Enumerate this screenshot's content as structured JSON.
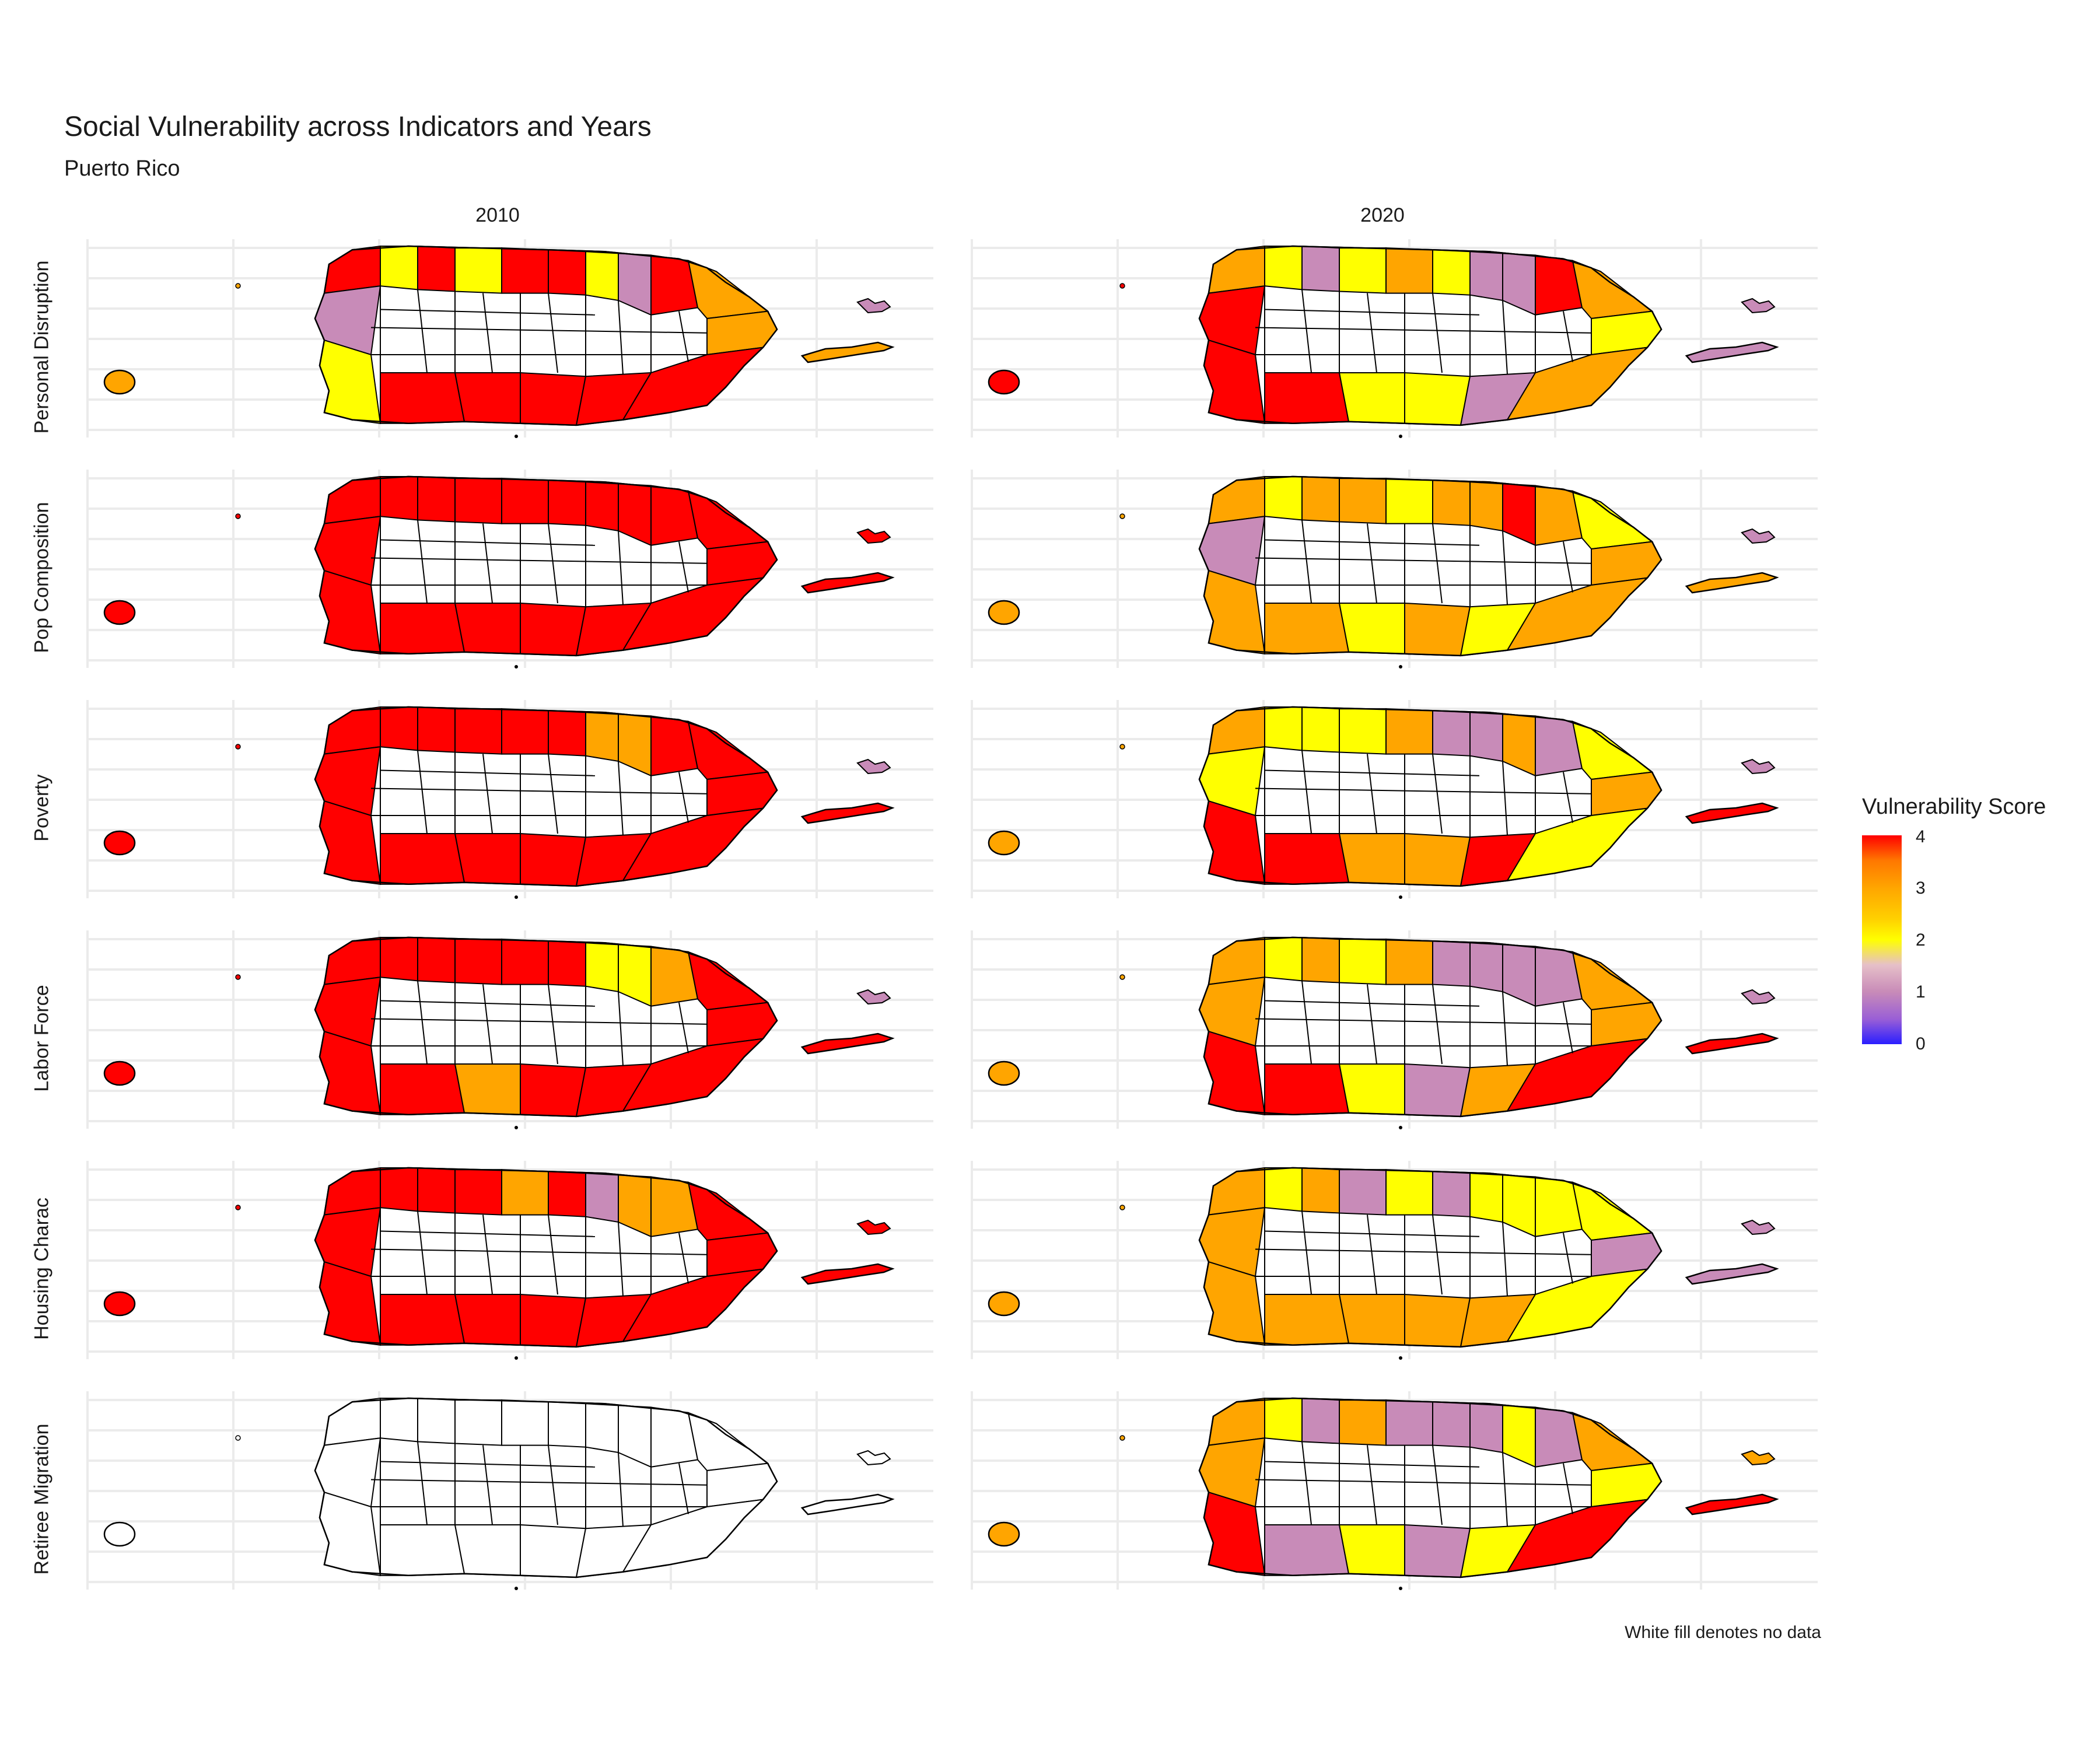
{
  "title": "Social Vulnerability across Indicators and Years",
  "subtitle": "Puerto Rico",
  "caption": "White fill denotes no data",
  "years": [
    "2010",
    "2020"
  ],
  "indicators": [
    "Personal Disruption",
    "Pop Composition",
    "Poverty",
    "Labor Force",
    "Housing Charac",
    "Retiree Migration"
  ],
  "legend": {
    "title": "Vulnerability Score",
    "ticks": [
      "4",
      "3",
      "2",
      "1",
      "0"
    ],
    "range": [
      0,
      4
    ],
    "colors": [
      "#2a1eff",
      "#c88bb8",
      "#ffff00",
      "#ffa500",
      "#ff0000"
    ]
  },
  "palette": {
    "score_4": "#ff0000",
    "score_3": "#ffa500",
    "score_2": "#ffff00",
    "score_1": "#c88bb8",
    "no_data": "#ffffff",
    "border": "#000000",
    "gridline": "#ebebeb"
  },
  "panel_fill_pattern": {
    "2010": {
      "Personal Disruption": [
        "red",
        "yellow",
        "red",
        "yellow",
        "red",
        "red",
        "yellow",
        "pink",
        "red",
        "orange",
        "pink",
        "orange",
        "yellow",
        "red",
        "red",
        "red",
        "red",
        "red"
      ],
      "Pop Composition": [
        "red",
        "red",
        "red",
        "red",
        "red",
        "red",
        "red",
        "red",
        "red",
        "red",
        "red",
        "red",
        "red",
        "red",
        "red",
        "red",
        "red",
        "red"
      ],
      "Poverty": [
        "red",
        "red",
        "red",
        "red",
        "red",
        "red",
        "orange",
        "orange",
        "red",
        "red",
        "red",
        "red",
        "red",
        "red",
        "red",
        "red",
        "red",
        "red"
      ],
      "Labor Force": [
        "red",
        "red",
        "red",
        "red",
        "red",
        "red",
        "yellow",
        "yellow",
        "orange",
        "red",
        "red",
        "red",
        "red",
        "red",
        "orange",
        "red",
        "red",
        "red"
      ],
      "Housing Charac": [
        "red",
        "red",
        "red",
        "red",
        "orange",
        "red",
        "pink",
        "orange",
        "orange",
        "red",
        "red",
        "red",
        "red",
        "red",
        "red",
        "red",
        "red",
        "red"
      ],
      "Retiree Migration": [
        "white",
        "white",
        "white",
        "white",
        "white",
        "white",
        "white",
        "white",
        "white",
        "white",
        "white",
        "white",
        "white",
        "white",
        "white",
        "white",
        "white",
        "white"
      ]
    },
    "2020": {
      "Personal Disruption": [
        "orange",
        "yellow",
        "pink",
        "yellow",
        "orange",
        "yellow",
        "pink",
        "pink",
        "red",
        "orange",
        "red",
        "yellow",
        "red",
        "red",
        "yellow",
        "yellow",
        "pink",
        "orange"
      ],
      "Pop Composition": [
        "orange",
        "yellow",
        "orange",
        "orange",
        "yellow",
        "orange",
        "orange",
        "red",
        "orange",
        "yellow",
        "pink",
        "orange",
        "orange",
        "orange",
        "yellow",
        "orange",
        "yellow",
        "orange"
      ],
      "Poverty": [
        "orange",
        "yellow",
        "yellow",
        "yellow",
        "orange",
        "pink",
        "pink",
        "orange",
        "pink",
        "yellow",
        "yellow",
        "orange",
        "red",
        "red",
        "orange",
        "orange",
        "red",
        "yellow"
      ],
      "Labor Force": [
        "orange",
        "yellow",
        "orange",
        "yellow",
        "orange",
        "pink",
        "pink",
        "pink",
        "pink",
        "orange",
        "orange",
        "orange",
        "red",
        "red",
        "yellow",
        "pink",
        "orange",
        "red"
      ],
      "Housing Charac": [
        "orange",
        "yellow",
        "orange",
        "pink",
        "yellow",
        "pink",
        "yellow",
        "yellow",
        "yellow",
        "yellow",
        "orange",
        "pink",
        "orange",
        "orange",
        "orange",
        "orange",
        "orange",
        "yellow"
      ],
      "Retiree Migration": [
        "orange",
        "yellow",
        "pink",
        "orange",
        "pink",
        "pink",
        "pink",
        "yellow",
        "pink",
        "orange",
        "orange",
        "yellow",
        "red",
        "pink",
        "yellow",
        "pink",
        "yellow",
        "red"
      ]
    }
  },
  "islands_fill": {
    "2010": {
      "Personal Disruption": {
        "mona": "orange",
        "culebra": "pink",
        "vieques": "orange"
      },
      "Pop Composition": {
        "mona": "red",
        "culebra": "red",
        "vieques": "red"
      },
      "Poverty": {
        "mona": "red",
        "culebra": "pink",
        "vieques": "red"
      },
      "Labor Force": {
        "mona": "red",
        "culebra": "pink",
        "vieques": "red"
      },
      "Housing Charac": {
        "mona": "red",
        "culebra": "red",
        "vieques": "red"
      },
      "Retiree Migration": {
        "mona": "white",
        "culebra": "white",
        "vieques": "white"
      }
    },
    "2020": {
      "Personal Disruption": {
        "mona": "red",
        "culebra": "pink",
        "vieques": "pink"
      },
      "Pop Composition": {
        "mona": "orange",
        "culebra": "pink",
        "vieques": "orange"
      },
      "Poverty": {
        "mona": "orange",
        "culebra": "pink",
        "vieques": "red"
      },
      "Labor Force": {
        "mona": "orange",
        "culebra": "pink",
        "vieques": "red"
      },
      "Housing Charac": {
        "mona": "orange",
        "culebra": "pink",
        "vieques": "pink"
      },
      "Retiree Migration": {
        "mona": "orange",
        "culebra": "orange",
        "vieques": "red"
      }
    }
  }
}
